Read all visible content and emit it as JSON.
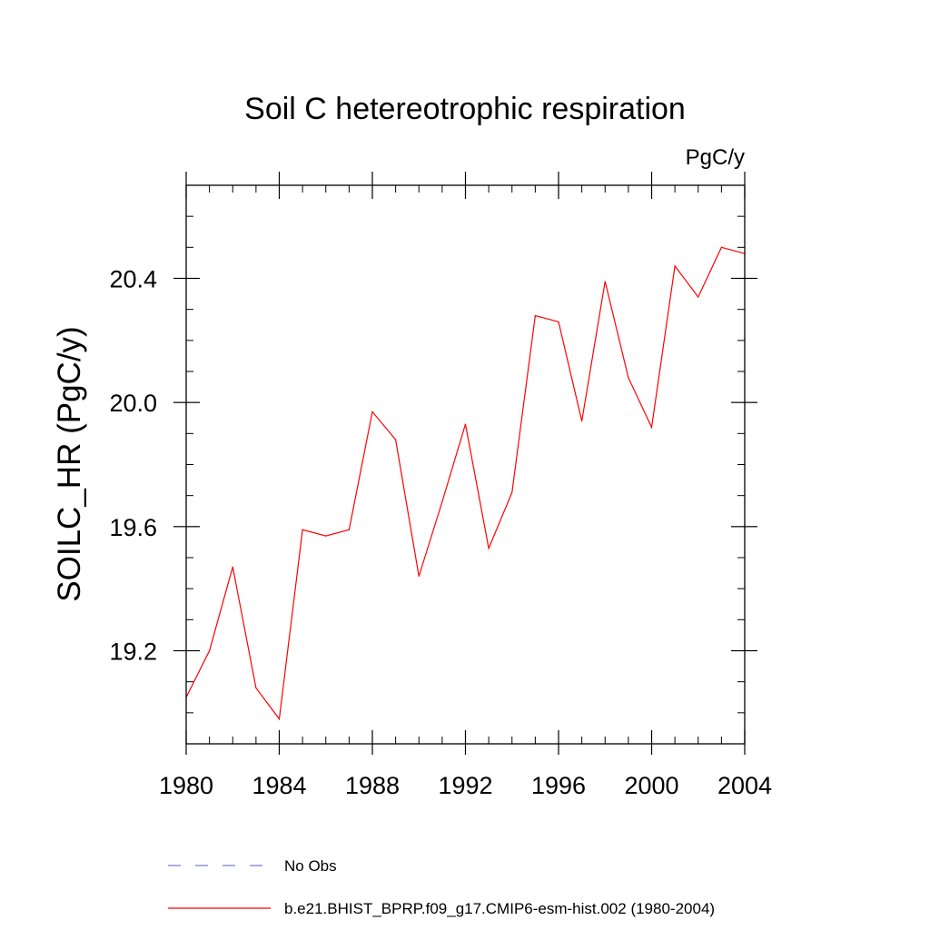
{
  "chart_data": {
    "type": "line",
    "title": "Soil C hetereotrophic respiration",
    "units_label": "PgC/y",
    "ylabel": "SOILC_HR  (PgC/y)",
    "xlabel": "",
    "xlim": [
      1980,
      2004
    ],
    "ylim": [
      18.9,
      20.7
    ],
    "x_ticks": [
      1980,
      1984,
      1988,
      1992,
      1996,
      2000,
      2004
    ],
    "x_tick_labels": [
      "1980",
      "1984",
      "1988",
      "1992",
      "1996",
      "2000",
      "2004"
    ],
    "y_ticks": [
      19.2,
      19.6,
      20.0,
      20.4
    ],
    "y_tick_labels": [
      "19.2",
      "19.6",
      "20.0",
      "20.4"
    ],
    "x_minor_step": 1,
    "y_minor_step": 0.1,
    "grid": false,
    "legend_position": "bottom-left",
    "series": [
      {
        "name": "b.e21.BHIST_BPRP.f09_g17.CMIP6-esm-hist.002 (1980-2004)",
        "color": "#ff0000",
        "x": [
          1980,
          1981,
          1982,
          1983,
          1984,
          1985,
          1986,
          1987,
          1988,
          1989,
          1990,
          1991,
          1992,
          1993,
          1994,
          1995,
          1996,
          1997,
          1998,
          1999,
          2000,
          2001,
          2002,
          2003,
          2004
        ],
        "values": [
          19.05,
          19.2,
          19.47,
          19.08,
          18.98,
          19.59,
          19.57,
          19.59,
          19.97,
          19.88,
          19.44,
          19.68,
          19.93,
          19.53,
          19.71,
          20.28,
          20.26,
          19.94,
          20.39,
          20.08,
          19.92,
          20.44,
          20.34,
          20.5,
          20.48
        ]
      }
    ],
    "legend": [
      {
        "label": "No Obs",
        "color": "#7b7bd6",
        "style": "dashed"
      },
      {
        "label": "b.e21.BHIST_BPRP.f09_g17.CMIP6-esm-hist.002 (1980-2004)",
        "color": "#ff0000",
        "style": "solid"
      }
    ]
  }
}
